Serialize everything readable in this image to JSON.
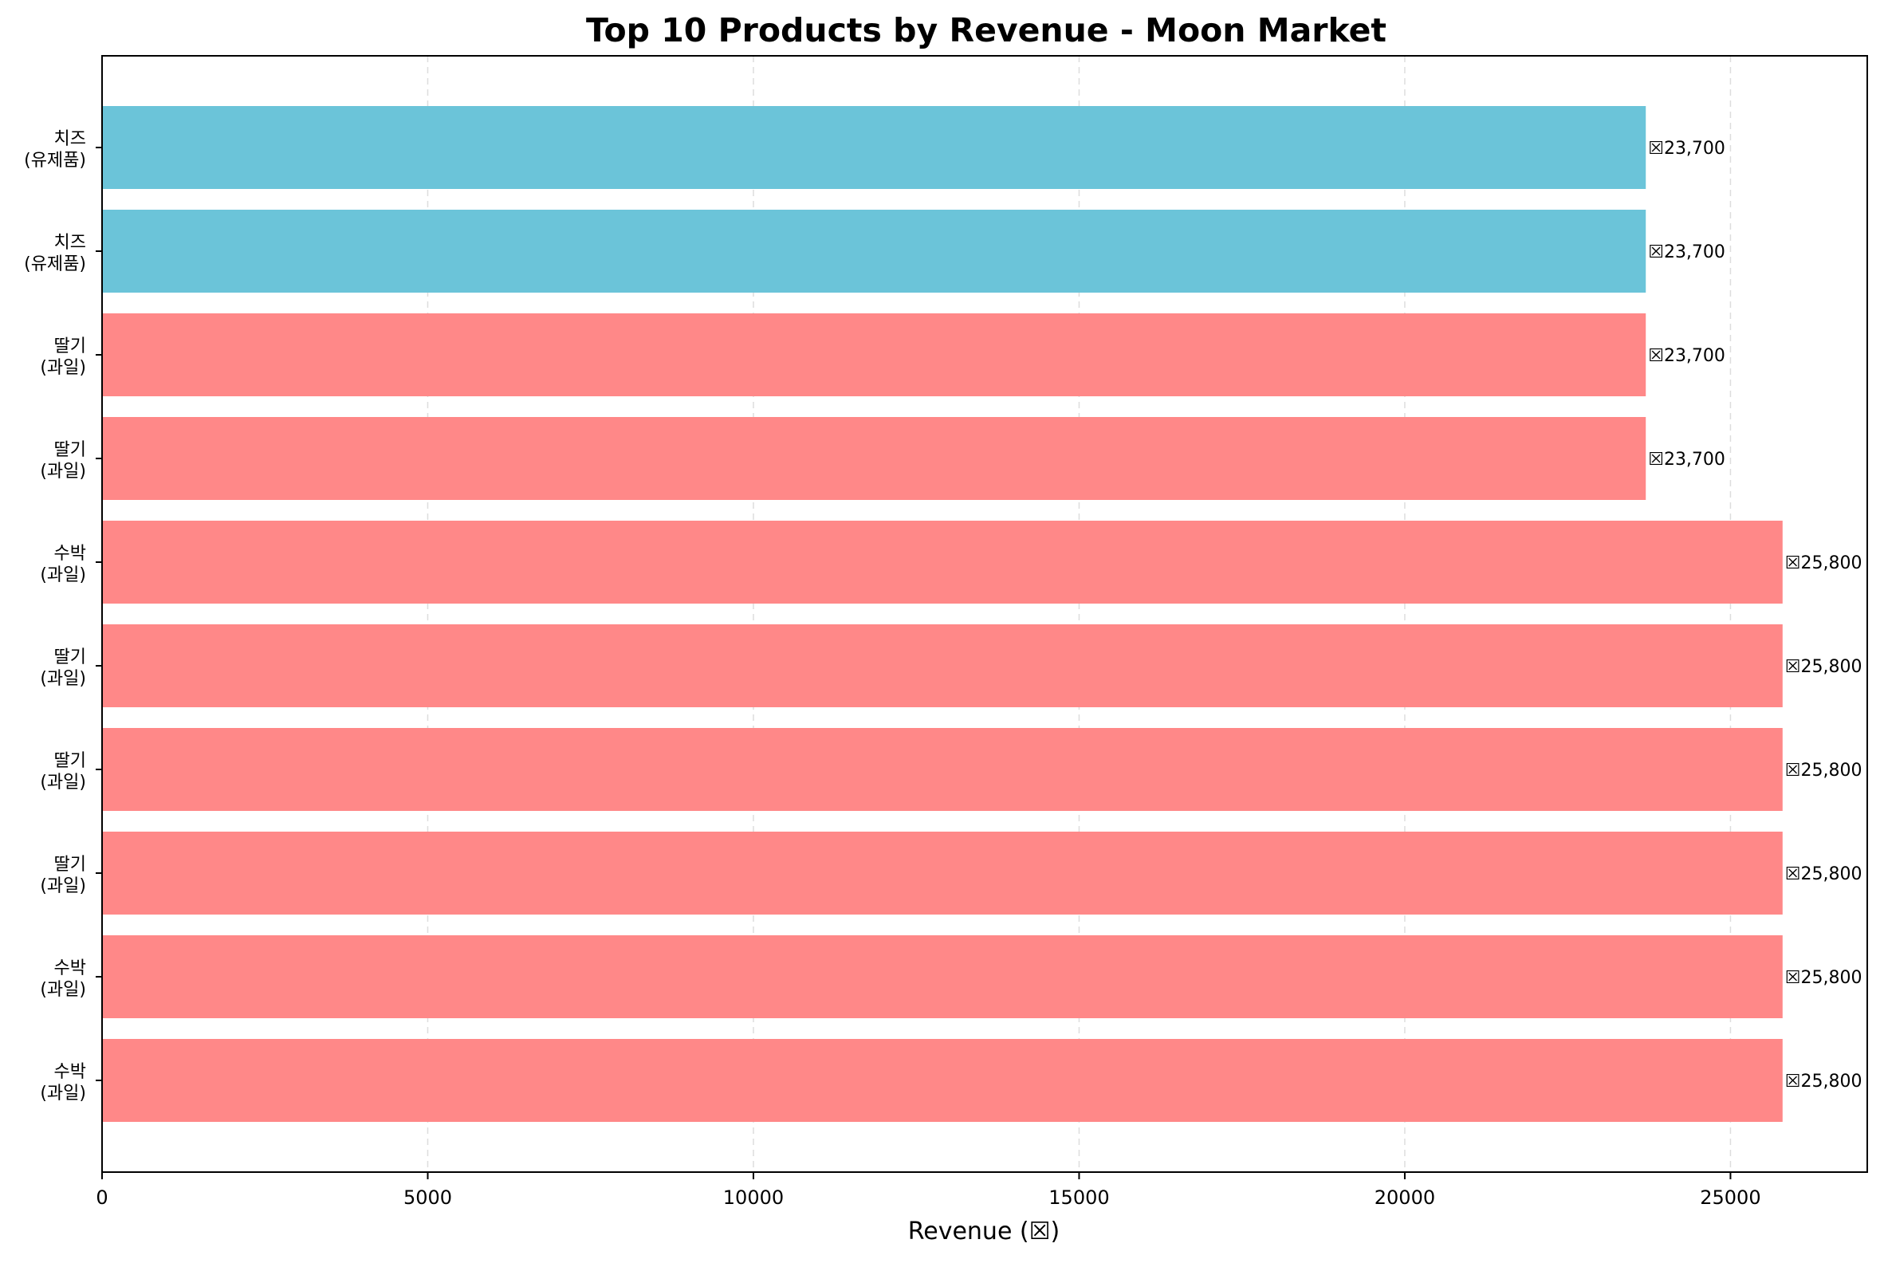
{
  "chart_data": {
    "type": "bar",
    "orientation": "horizontal",
    "title": "Top 10 Products by Revenue - Moon Market",
    "xlabel": "Revenue (☒)",
    "ylabel": "",
    "xlim": [
      0,
      27100
    ],
    "xticks": [
      0,
      5000,
      10000,
      15000,
      20000,
      25000
    ],
    "xtick_labels": [
      "0",
      "5000",
      "10000",
      "15000",
      "20000",
      "25000"
    ],
    "grid": "x dashed",
    "categories": [
      [
        "치즈",
        "(유제품)"
      ],
      [
        "치즈",
        "(유제품)"
      ],
      [
        "딸기",
        "(과일)"
      ],
      [
        "딸기",
        "(과일)"
      ],
      [
        "수박",
        "(과일)"
      ],
      [
        "딸기",
        "(과일)"
      ],
      [
        "딸기",
        "(과일)"
      ],
      [
        "딸기",
        "(과일)"
      ],
      [
        "수박",
        "(과일)"
      ],
      [
        "수박",
        "(과일)"
      ]
    ],
    "values": [
      23700,
      23700,
      23700,
      23700,
      25800,
      25800,
      25800,
      25800,
      25800,
      25800
    ],
    "value_labels": [
      "☒23,700",
      "☒23,700",
      "☒23,700",
      "☒23,700",
      "☒25,800",
      "☒25,800",
      "☒25,800",
      "☒25,800",
      "☒25,800",
      "☒25,800"
    ],
    "bar_colors": [
      "#6bc4d9",
      "#6bc4d9",
      "#ff8888",
      "#ff8888",
      "#ff8888",
      "#ff8888",
      "#ff8888",
      "#ff8888",
      "#ff8888",
      "#ff8888"
    ]
  }
}
